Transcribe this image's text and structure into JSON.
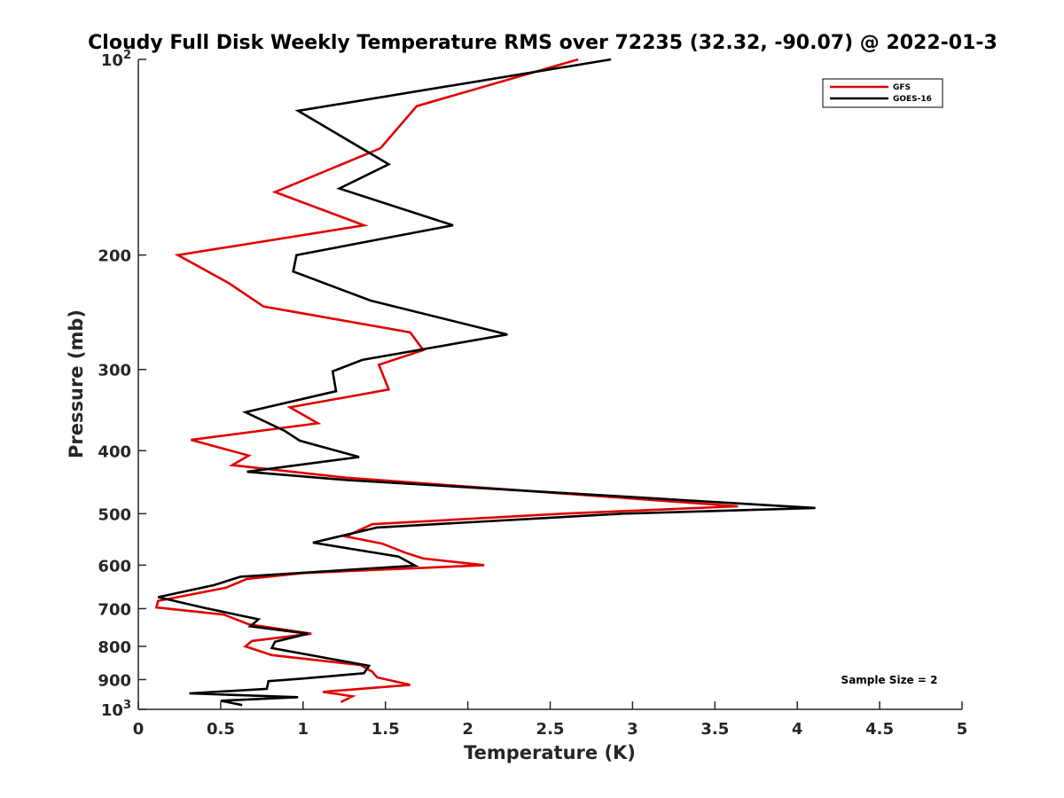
{
  "chart_data": {
    "type": "line",
    "title": "Cloudy Full Disk Weekly Temperature RMS over 72235 (32.32, -90.07) @ 2022-01-3",
    "xlabel": "Temperature (K)",
    "ylabel": "Pressure (mb)",
    "xlim": [
      0,
      5
    ],
    "ylim": [
      100,
      1000
    ],
    "yscale": "log",
    "y_reversed": true,
    "grid": false,
    "legend_position": "top-right",
    "x_ticks": [
      "0",
      "0.5",
      "1",
      "1.5",
      "2",
      "2.5",
      "3",
      "3.5",
      "4",
      "4.5",
      "5"
    ],
    "y_ticks": [
      {
        "value": 100,
        "base": "10",
        "exp": "2"
      },
      {
        "value": 200,
        "label": "200"
      },
      {
        "value": 300,
        "label": "300"
      },
      {
        "value": 400,
        "label": "400"
      },
      {
        "value": 500,
        "label": "500"
      },
      {
        "value": 600,
        "label": "600"
      },
      {
        "value": 700,
        "label": "700"
      },
      {
        "value": 800,
        "label": "800"
      },
      {
        "value": 900,
        "label": "900"
      },
      {
        "value": 1000,
        "base": "10",
        "exp": "3"
      }
    ],
    "annotation": "Sample Size = 2",
    "series": [
      {
        "name": "GFS",
        "color": "#e00000",
        "points": [
          [
            2.67,
            100
          ],
          [
            1.69,
            118
          ],
          [
            1.47,
            137
          ],
          [
            0.83,
            160
          ],
          [
            1.37,
            180
          ],
          [
            0.24,
            200
          ],
          [
            0.55,
            221
          ],
          [
            0.76,
            240
          ],
          [
            1.65,
            263
          ],
          [
            1.73,
            280
          ],
          [
            1.46,
            295
          ],
          [
            1.52,
            322
          ],
          [
            0.92,
            343
          ],
          [
            1.09,
            363
          ],
          [
            0.32,
            385
          ],
          [
            0.67,
            407
          ],
          [
            0.57,
            421
          ],
          [
            1.26,
            440
          ],
          [
            3.64,
            487
          ],
          [
            2.58,
            500
          ],
          [
            1.42,
            519
          ],
          [
            1.26,
            542
          ],
          [
            1.48,
            556
          ],
          [
            1.62,
            574
          ],
          [
            1.73,
            586
          ],
          [
            2.1,
            600
          ],
          [
            1.0,
            617
          ],
          [
            0.66,
            630
          ],
          [
            0.53,
            650
          ],
          [
            0.12,
            681
          ],
          [
            0.11,
            697
          ],
          [
            0.52,
            715
          ],
          [
            0.67,
            740
          ],
          [
            1.05,
            765
          ],
          [
            0.69,
            785
          ],
          [
            0.65,
            800
          ],
          [
            0.81,
            825
          ],
          [
            1.35,
            855
          ],
          [
            1.42,
            875
          ],
          [
            1.45,
            893
          ],
          [
            1.65,
            917
          ],
          [
            1.12,
            940
          ],
          [
            1.3,
            955
          ],
          [
            1.23,
            975
          ]
        ]
      },
      {
        "name": "GOES-16",
        "color": "#000000",
        "points": [
          [
            2.87,
            100
          ],
          [
            0.97,
            120
          ],
          [
            1.52,
            145
          ],
          [
            1.22,
            158
          ],
          [
            1.91,
            180
          ],
          [
            0.96,
            200
          ],
          [
            0.94,
            212
          ],
          [
            1.41,
            235
          ],
          [
            2.24,
            265
          ],
          [
            1.36,
            290
          ],
          [
            1.18,
            302
          ],
          [
            1.2,
            324
          ],
          [
            0.65,
            349
          ],
          [
            0.89,
            373
          ],
          [
            0.98,
            386
          ],
          [
            1.34,
            409
          ],
          [
            0.66,
            431
          ],
          [
            1.27,
            444
          ],
          [
            4.11,
            490
          ],
          [
            2.94,
            500
          ],
          [
            1.45,
            525
          ],
          [
            1.06,
            554
          ],
          [
            1.58,
            582
          ],
          [
            1.68,
            601
          ],
          [
            0.62,
            625
          ],
          [
            0.46,
            644
          ],
          [
            0.12,
            672
          ],
          [
            0.4,
            698
          ],
          [
            0.73,
            727
          ],
          [
            0.68,
            745
          ],
          [
            1.03,
            765
          ],
          [
            0.83,
            787
          ],
          [
            0.81,
            805
          ],
          [
            1.4,
            857
          ],
          [
            1.37,
            880
          ],
          [
            0.99,
            897
          ],
          [
            0.79,
            905
          ],
          [
            0.78,
            930
          ],
          [
            0.31,
            945
          ],
          [
            0.97,
            958
          ],
          [
            0.5,
            970
          ],
          [
            0.63,
            985
          ]
        ]
      }
    ]
  }
}
